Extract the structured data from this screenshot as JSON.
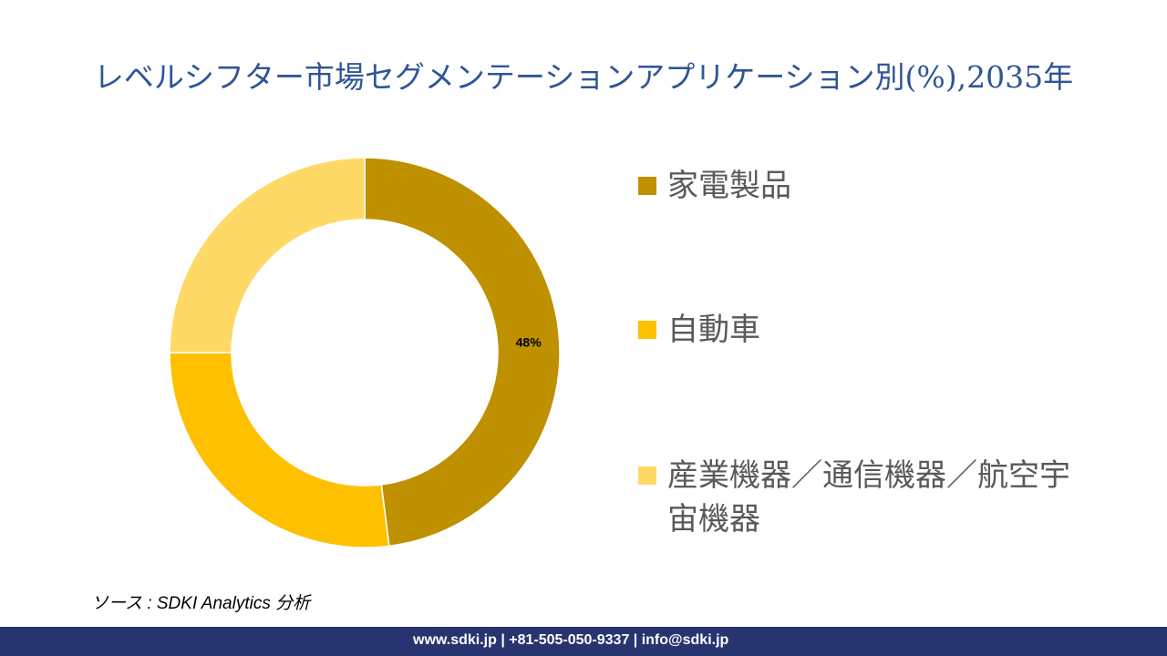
{
  "chart_data": {
    "type": "pie",
    "title": "レベルシフター市場セグメンテーションアプリケーション別(%),2035年",
    "donut": true,
    "categories": [
      "家電製品",
      "自動車",
      "産業機器／通信機器／航空宇宙機器"
    ],
    "values": [
      48,
      27,
      25
    ],
    "data_labels": [
      "48%",
      "",
      ""
    ],
    "colors": [
      "#BF9000",
      "#FFC000",
      "#FFD966"
    ],
    "legend_position": "right"
  },
  "source": "ソース : SDKI Analytics 分析",
  "footer": "www.sdki.jp | +81-505-050-9337 | info@sdki.jp"
}
